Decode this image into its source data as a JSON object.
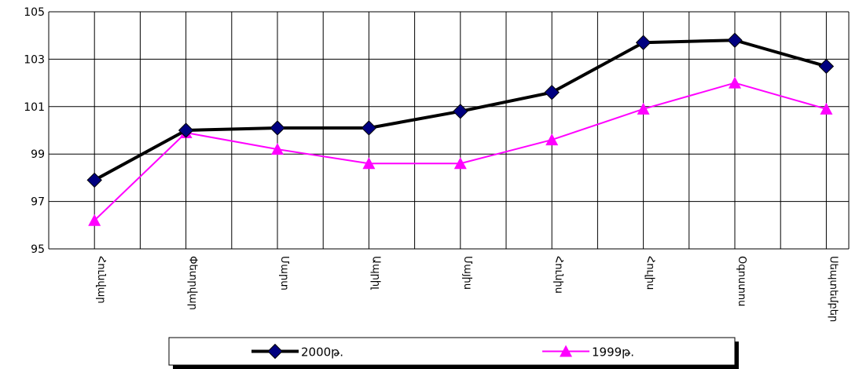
{
  "chart_data": {
    "type": "line",
    "categories": [
      "Հունվար",
      "Փետրվար",
      "Մարտ",
      "Ապրիլ",
      "Մայիս",
      "Հունիս",
      "Հուլիս",
      "Օգոստոս",
      "Սեպտեմբեր"
    ],
    "series": [
      {
        "name": "2000թ.",
        "color": "#000080",
        "line_color": "#000000",
        "marker": "diamond",
        "values": [
          97.9,
          100.0,
          100.1,
          100.1,
          100.8,
          101.6,
          103.7,
          103.8,
          102.7
        ]
      },
      {
        "name": "1999թ.",
        "color": "#ff00ff",
        "line_color": "#ff00ff",
        "marker": "triangle",
        "values": [
          96.2,
          99.9,
          99.2,
          98.6,
          98.6,
          99.6,
          100.9,
          102.0,
          100.9
        ]
      }
    ],
    "ylim": [
      95,
      105
    ],
    "yticks": [
      95,
      97,
      99,
      101,
      103,
      105
    ],
    "grid": true,
    "legend": "bottom"
  }
}
